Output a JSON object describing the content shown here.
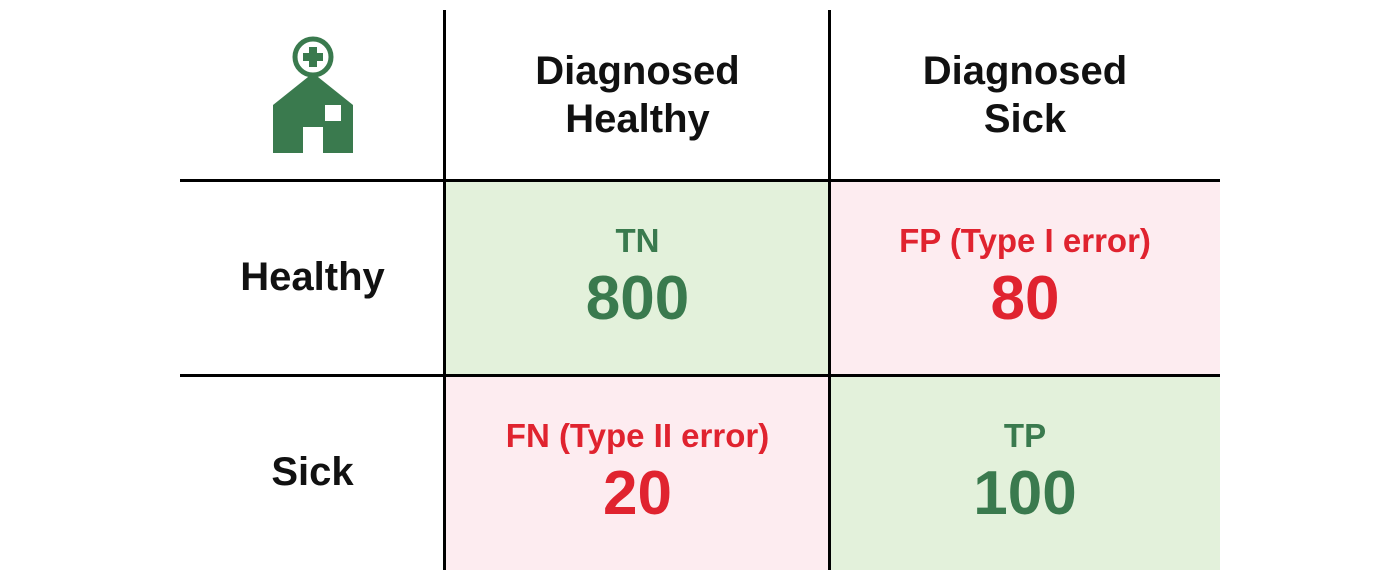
{
  "logo": {
    "icon": "hospital-icon",
    "color": "#3a7a4e"
  },
  "columns": [
    {
      "line1": "Diagnosed",
      "line2": "Healthy"
    },
    {
      "line1": "Diagnosed",
      "line2": "Sick"
    }
  ],
  "rows": [
    {
      "label": "Healthy"
    },
    {
      "label": "Sick"
    }
  ],
  "cells": {
    "tn": {
      "label": "TN",
      "value": "800"
    },
    "fp": {
      "label": "FP (Type I error)",
      "value": "80"
    },
    "fn": {
      "label": "FN (Type II error)",
      "value": "20"
    },
    "tp": {
      "label": "TP",
      "value": "100"
    }
  },
  "colors": {
    "correct_text": "#3a7a4e",
    "error_text": "#e0232f",
    "correct_bg": "#e3f1db",
    "error_bg": "#fdecf0"
  }
}
